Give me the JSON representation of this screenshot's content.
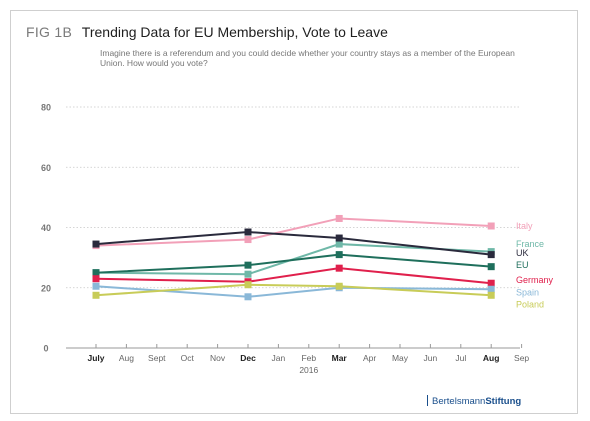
{
  "header": {
    "fig_label": "FIG 1B",
    "title": "Trending Data for EU Membership, Vote to Leave",
    "subtitle": "Imagine there is a referendum and you could decide whether your country stays as a member of the European Union. How would you vote?"
  },
  "brand": {
    "name_regular": "Bertelsmann",
    "name_bold": "Stiftung",
    "color": "#1a4f8c"
  },
  "chart_data": {
    "type": "line",
    "title": "Trending Data for EU Membership, Vote to Leave",
    "subtitle": "Imagine there is a referendum and you could decide whether your country stays as a member of the European Union. How would you vote?",
    "xlabel": "",
    "ylabel": "",
    "ylim": [
      0,
      80
    ],
    "yticks": [
      0,
      20,
      40,
      60,
      80
    ],
    "months": [
      "July",
      "Aug",
      "Sept",
      "Oct",
      "Nov",
      "Dec",
      "Jan",
      "Feb",
      "Mar",
      "Apr",
      "May",
      "Jun",
      "Jul",
      "Aug",
      "Sep"
    ],
    "bold_months": [
      "July",
      "Dec",
      "Mar",
      "Aug"
    ],
    "year_label": "2016",
    "year_label_month_index": 7,
    "x": [
      "July",
      "Dec",
      "Mar",
      "Aug"
    ],
    "x_index": [
      0,
      5,
      8,
      13
    ],
    "grid": true,
    "legend": "right-end labels",
    "series": [
      {
        "name": "Italy",
        "color": "#f2a0b8",
        "values": [
          34,
          36,
          43,
          40.5
        ]
      },
      {
        "name": "France",
        "color": "#6fb8a8",
        "values": [
          25,
          24.5,
          34.5,
          32
        ]
      },
      {
        "name": "UK",
        "color": "#2a2a3c",
        "values": [
          34.5,
          38.5,
          36.5,
          31
        ]
      },
      {
        "name": "EU",
        "color": "#1f6f5c",
        "values": [
          25,
          27.5,
          31,
          27
        ]
      },
      {
        "name": "Germany",
        "color": "#e0204c",
        "values": [
          23,
          22,
          26.5,
          21.5
        ]
      },
      {
        "name": "Spain",
        "color": "#8ab8d8",
        "values": [
          20.5,
          17,
          20,
          19.5
        ]
      },
      {
        "name": "Poland",
        "color": "#c8cc58",
        "values": [
          17.5,
          21,
          20.5,
          17.5
        ]
      }
    ],
    "label_y": {
      "Italy": 40.5,
      "France": 34.5,
      "UK": 31.5,
      "EU": 27.5,
      "Germany": 22.5,
      "Spain": 18.5,
      "Poland": 14.5
    }
  }
}
